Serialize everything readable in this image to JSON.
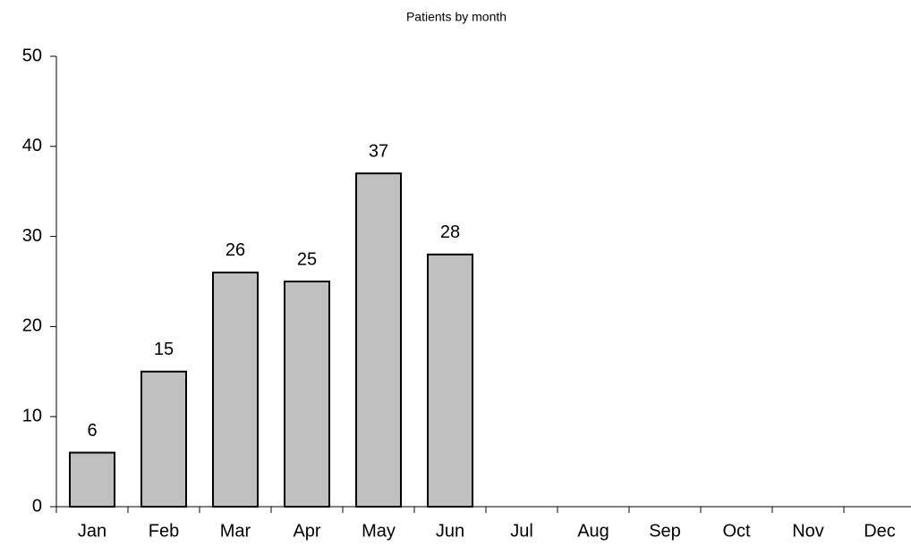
{
  "chart_data": {
    "type": "bar",
    "title": "Patients by month",
    "categories": [
      "Jan",
      "Feb",
      "Mar",
      "Apr",
      "May",
      "Jun",
      "Jul",
      "Aug",
      "Sep",
      "Oct",
      "Nov",
      "Dec"
    ],
    "values": [
      6,
      15,
      26,
      25,
      37,
      28,
      null,
      null,
      null,
      null,
      null,
      null
    ],
    "color": "#c0c0c0",
    "ylim": [
      0,
      50
    ],
    "yticks": [
      0,
      10,
      20,
      30,
      40,
      50
    ],
    "grid": false
  }
}
